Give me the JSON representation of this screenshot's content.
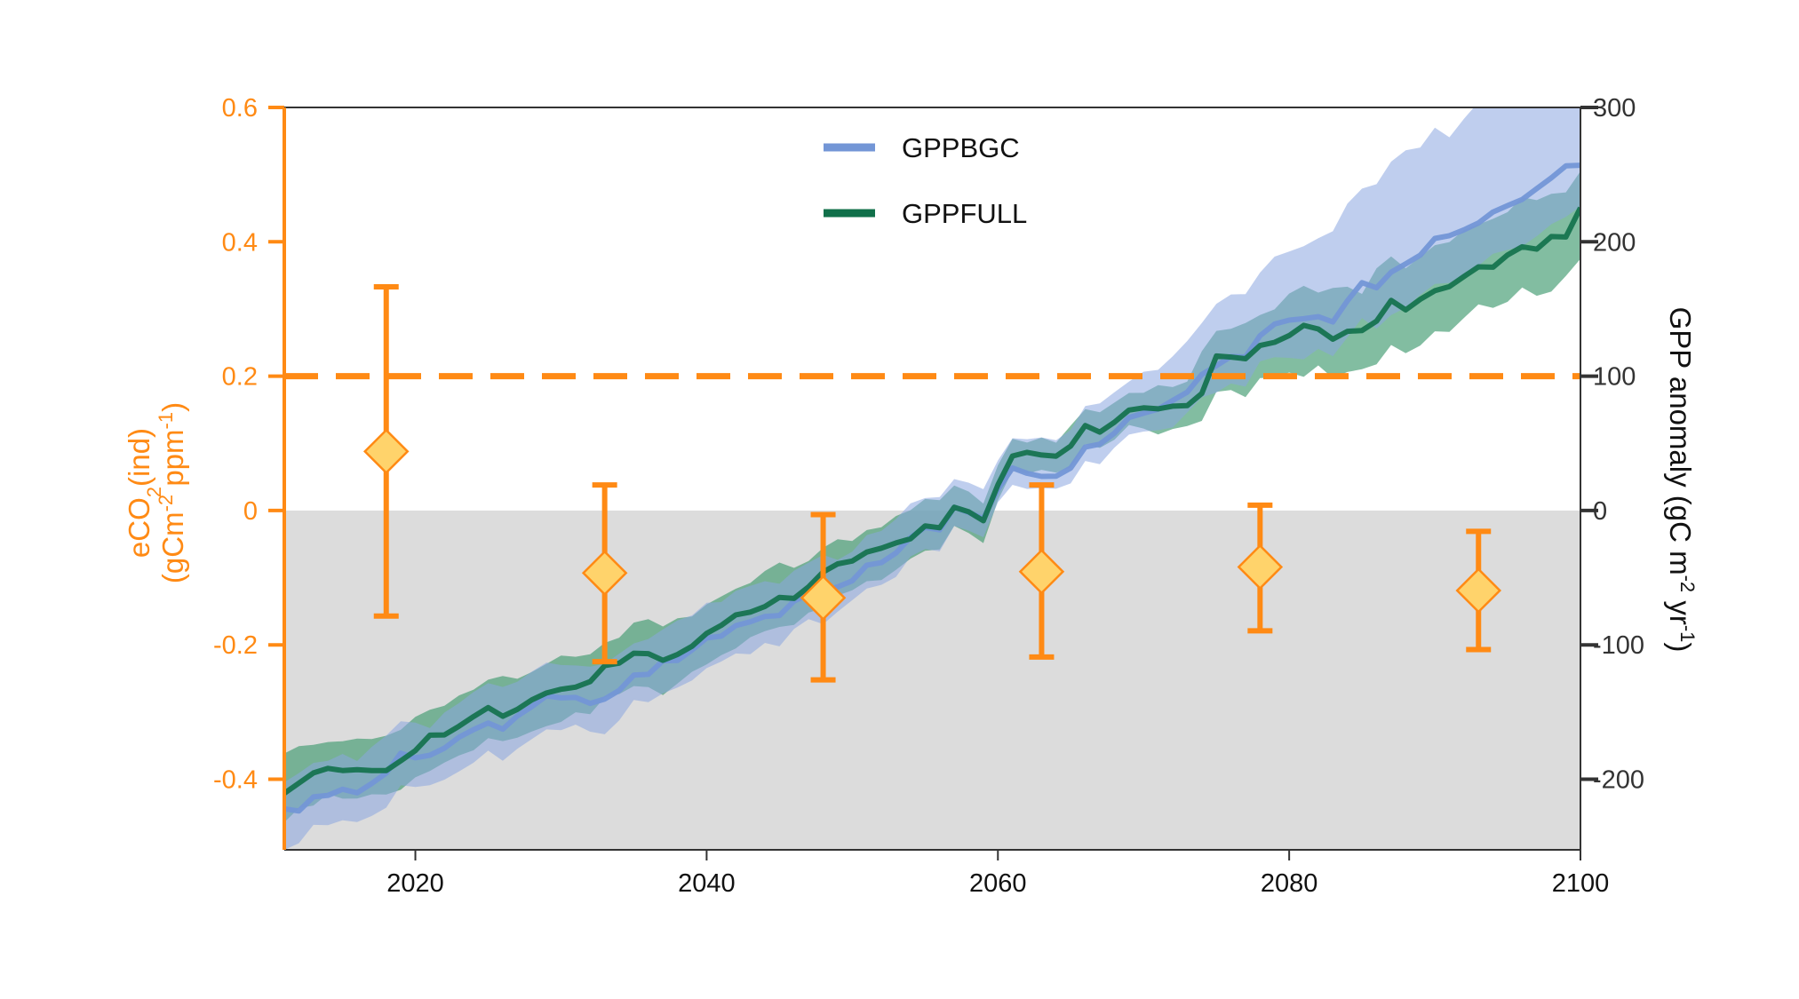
{
  "chart_data": {
    "type": "line",
    "colors": {
      "eco2": "#ff8a14",
      "marker_fill": "#ffd36b",
      "bgc": "#7396d6",
      "bgc_band": "#8ba5e0",
      "full": "#11704a",
      "full_band": "#3f9a6f",
      "negative_region": "#dcdcdc",
      "right_axis": "#333333"
    },
    "x_axis": {
      "range": [
        2011,
        2100
      ],
      "ticks": [
        2020,
        2040,
        2060,
        2080,
        2100
      ],
      "tick_labels": [
        "2020",
        "2040",
        "2060",
        "2080",
        "2100"
      ]
    },
    "left_axis": {
      "label_line1": "eCO",
      "label_sub": "2",
      "label_line1_rest": "(ind)",
      "label_line2_prefix": "(gCm",
      "label_line2_sup1": "-2",
      "label_line2_mid": " ppm",
      "label_line2_sup2": "-1",
      "label_line2_suffix": ")",
      "range": [
        -0.505,
        0.6
      ],
      "ticks": [
        -0.4,
        -0.2,
        0,
        0.2,
        0.4,
        0.6
      ],
      "tick_labels": [
        "-0.4",
        "-0.2",
        "0",
        "0.2",
        "0.4",
        "0.6"
      ]
    },
    "right_axis": {
      "label_prefix": "GPP anomaly (gC m",
      "label_sup1": "-2",
      "label_mid": " yr",
      "label_sup2": "-1",
      "label_suffix": ")",
      "range": [
        -252.5,
        300
      ],
      "ticks": [
        -200,
        -100,
        0,
        100,
        200,
        300
      ],
      "tick_labels": [
        "-200",
        "-100",
        "0",
        "100",
        "200",
        "300"
      ]
    },
    "threshold": {
      "axis": "left",
      "y": 0.2,
      "style": "dashed"
    },
    "eco2_points": {
      "x": [
        2018,
        2033,
        2048,
        2063,
        2078,
        2093
      ],
      "y": [
        0.088,
        -0.093,
        -0.13,
        -0.091,
        -0.084,
        -0.119
      ],
      "lower": [
        -0.157,
        -0.225,
        -0.252,
        -0.218,
        -0.179,
        -0.207
      ],
      "upper": [
        0.333,
        0.038,
        -0.006,
        0.038,
        0.008,
        -0.031
      ]
    },
    "legend": {
      "position": "top-center",
      "entries": [
        "GPPBGC",
        "GPPFULL"
      ]
    },
    "gpp_years": [
      2011,
      2012,
      2013,
      2014,
      2015,
      2016,
      2017,
      2018,
      2019,
      2020,
      2021,
      2022,
      2023,
      2024,
      2025,
      2026,
      2027,
      2028,
      2029,
      2030,
      2031,
      2032,
      2033,
      2034,
      2035,
      2036,
      2037,
      2038,
      2039,
      2040,
      2041,
      2042,
      2043,
      2044,
      2045,
      2046,
      2047,
      2048,
      2049,
      2050,
      2051,
      2052,
      2053,
      2054,
      2055,
      2056,
      2057,
      2058,
      2059,
      2060,
      2061,
      2062,
      2063,
      2064,
      2065,
      2066,
      2067,
      2068,
      2069,
      2070,
      2071,
      2072,
      2073,
      2074,
      2075,
      2076,
      2077,
      2078,
      2079,
      2080,
      2081,
      2082,
      2083,
      2084,
      2085,
      2086,
      2087,
      2088,
      2089,
      2090,
      2091,
      2092,
      2093,
      2094,
      2095,
      2096,
      2097,
      2098,
      2099,
      2100
    ],
    "series": [
      {
        "name": "GPPBGC",
        "values": [
          -222.0,
          -223.6,
          -213.1,
          -212.0,
          -207.4,
          -210.1,
          -203.1,
          -195.4,
          -180.6,
          -184.0,
          -182.1,
          -176.8,
          -168.7,
          -163.0,
          -158.1,
          -162.7,
          -152.9,
          -145.9,
          -137.9,
          -139.4,
          -139.1,
          -143.5,
          -140.3,
          -133.9,
          -122.5,
          -121.9,
          -111.8,
          -111.6,
          -103.8,
          -94.8,
          -93.5,
          -85.6,
          -82.8,
          -78.8,
          -78.1,
          -67.4,
          -62.3,
          -60.3,
          -56.8,
          -52.3,
          -40.6,
          -38.8,
          -31.6,
          -20.0,
          -12.5,
          -14.4,
          2.5,
          -1.5,
          -6.0,
          15.8,
          31.7,
          27.7,
          25.4,
          25.6,
          31.6,
          47.3,
          49.4,
          57.6,
          69.2,
          72.4,
          75.5,
          81.9,
          88.1,
          101.3,
          107.8,
          114.6,
          114.3,
          130.1,
          138.8,
          141.7,
          142.8,
          144.3,
          140.3,
          156.1,
          169.6,
          165.8,
          177.4,
          183.6,
          190.1,
          202.5,
          204.6,
          208.9,
          214.0,
          222.2,
          227.0,
          231.5,
          239.6,
          247.6,
          256.5,
          257.0
        ],
        "lower": [
          -252.5,
          -247.6,
          -233.9,
          -234.1,
          -230.5,
          -231.9,
          -227.3,
          -221.1,
          -204.4,
          -205.7,
          -204.4,
          -200.3,
          -194.2,
          -187.7,
          -178.6,
          -186.2,
          -177.3,
          -170.1,
          -162.9,
          -163.5,
          -159.3,
          -164.6,
          -166.5,
          -156.2,
          -141.0,
          -142.6,
          -136.1,
          -131.7,
          -126.4,
          -117.3,
          -112.4,
          -106.4,
          -107.0,
          -98.5,
          -101.1,
          -88.1,
          -80.8,
          -84.6,
          -75.3,
          -66.7,
          -58.0,
          -55.3,
          -49.4,
          -34.3,
          -28.7,
          -30.4,
          -11.4,
          -15.0,
          -19.9,
          6.2,
          19.1,
          16.1,
          16.6,
          16.2,
          20.2,
          36.9,
          34.5,
          46.8,
          56.5,
          58.8,
          59.8,
          61.8,
          73.0,
          84.2,
          87.8,
          94.5,
          92.2,
          111.0,
          114.1,
          113.6,
          112.6,
          120.3,
          114.9,
          128.9,
          143.2,
          135.4,
          145.5,
          151.0,
          160.5,
          168.7,
          169.4,
          174.2,
          182.2,
          191.1,
          194.0,
          196.8,
          204.2,
          213.1,
          218.6,
          226.4
        ],
        "upper": [
          -202.2,
          -195.4,
          -187.8,
          -186.3,
          -181.1,
          -186.4,
          -175.9,
          -167.4,
          -156.9,
          -157.8,
          -161.9,
          -150.3,
          -143.3,
          -135.0,
          -128.4,
          -131.3,
          -127.4,
          -119.8,
          -113.1,
          -115.0,
          -115.3,
          -116.2,
          -114.1,
          -106.5,
          -98.9,
          -95.6,
          -88.4,
          -81.7,
          -78.0,
          -68.6,
          -68.1,
          -59.8,
          -56.1,
          -52.6,
          -54.5,
          -44.7,
          -38.8,
          -33.0,
          -36.7,
          -30.6,
          -18.2,
          -15.2,
          -6.4,
          5.3,
          9.3,
          10.1,
          23.4,
          20.7,
          15.9,
          37.3,
          53.8,
          53.1,
          54.4,
          52.3,
          60.0,
          77.8,
          79.8,
          88.0,
          95.9,
          103.3,
          104.7,
          114.8,
          126.2,
          139.6,
          153.9,
          160.8,
          161.1,
          177.1,
          189.0,
          192.8,
          196.8,
          202.7,
          207.9,
          228.4,
          239.6,
          242.9,
          259.7,
          268.1,
          270.2,
          285.0,
          277.8,
          291.6,
          303.9,
          304.9,
          313.8,
          309.7,
          326.0,
          336.4,
          342.2,
          347.2
        ]
      },
      {
        "name": "GPPFULL",
        "values": [
          -210.5,
          -202.9,
          -195.3,
          -191.9,
          -193.5,
          -192.8,
          -193.5,
          -193.5,
          -186.3,
          -178.7,
          -167.2,
          -167.0,
          -160.5,
          -153.3,
          -146.6,
          -153.1,
          -148.0,
          -140.9,
          -135.8,
          -133.0,
          -131.4,
          -127.3,
          -115.4,
          -113.6,
          -106.2,
          -106.5,
          -111.5,
          -107.1,
          -101.0,
          -91.4,
          -85.5,
          -77.6,
          -75.6,
          -71.4,
          -64.6,
          -65.4,
          -56.8,
          -45.7,
          -39.7,
          -37.6,
          -30.9,
          -28.0,
          -24.1,
          -21.0,
          -11.4,
          -12.8,
          2.5,
          -1.0,
          -7.6,
          19.1,
          40.6,
          43.3,
          41.3,
          40.5,
          48.0,
          63.3,
          58.4,
          65.7,
          74.8,
          76.4,
          75.7,
          77.7,
          78.1,
          87.1,
          115.0,
          114.2,
          113.0,
          122.8,
          125.2,
          130.2,
          137.8,
          135.1,
          127.5,
          133.4,
          134.0,
          141.0,
          156.4,
          149.3,
          157.2,
          163.6,
          166.7,
          174.2,
          181.4,
          181.1,
          190.2,
          196.3,
          194.5,
          203.9,
          203.6,
          225.3
        ],
        "lower": [
          -232.0,
          -221.5,
          -219.5,
          -210.8,
          -214.4,
          -214.3,
          -211.2,
          -211.4,
          -207.8,
          -198.6,
          -193.8,
          -187.6,
          -182.3,
          -178.4,
          -169.4,
          -171.6,
          -169.0,
          -164.5,
          -160.5,
          -157.3,
          -150.1,
          -151.6,
          -138.9,
          -136.6,
          -130.6,
          -131.4,
          -137.3,
          -128.7,
          -120.0,
          -114.5,
          -107.7,
          -102.6,
          -94.3,
          -89.7,
          -86.6,
          -85.1,
          -76.0,
          -72.6,
          -63.2,
          -59.4,
          -52.6,
          -51.7,
          -44.2,
          -35.8,
          -29.9,
          -29.0,
          -11.4,
          -16.8,
          -24.2,
          7.6,
          29.6,
          27.6,
          30.3,
          28.2,
          32.1,
          49.4,
          46.6,
          52.7,
          63.7,
          61.0,
          56.6,
          60.7,
          62.9,
          66.7,
          88.3,
          89.7,
          84.4,
          98.6,
          98.8,
          102.7,
          99.5,
          108.0,
          98.6,
          103.1,
          105.2,
          108.8,
          123.2,
          117.1,
          122.8,
          133.4,
          133.0,
          143.4,
          153.4,
          150.8,
          155.3,
          166.0,
          159.8,
          162.9,
          174.6,
          187.3
        ],
        "upper": [
          -180.8,
          -175.4,
          -174.4,
          -172.3,
          -171.7,
          -169.7,
          -170.0,
          -167.6,
          -163.2,
          -153.5,
          -148.2,
          -145.3,
          -137.6,
          -133.3,
          -125.9,
          -123.1,
          -125.2,
          -120.2,
          -114.1,
          -107.9,
          -108.8,
          -107.0,
          -98.5,
          -94.6,
          -83.4,
          -80.8,
          -86.3,
          -80.2,
          -78.9,
          -69.8,
          -64.0,
          -58.2,
          -53.9,
          -45.0,
          -38.7,
          -42.7,
          -37.5,
          -27.7,
          -21.3,
          -22.7,
          -14.5,
          -12.4,
          -4.1,
          0.3,
          8.6,
          7.7,
          18.6,
          14.1,
          5.2,
          33.7,
          53.4,
          50.6,
          54.3,
          50.5,
          63.2,
          75.4,
          73.2,
          80.3,
          87.5,
          87.6,
          93.3,
          91.9,
          96.0,
          118.6,
          133.7,
          135.3,
          139.6,
          145.5,
          149.7,
          161.5,
          167.2,
          162.2,
          165.7,
          166.6,
          161.2,
          180.3,
          189.2,
          180.3,
          188.8,
          197.5,
          199.8,
          208.8,
          212.9,
          217.1,
          222.1,
          233.2,
          231.0,
          235.7,
          236.8,
          252.5
        ]
      }
    ]
  }
}
